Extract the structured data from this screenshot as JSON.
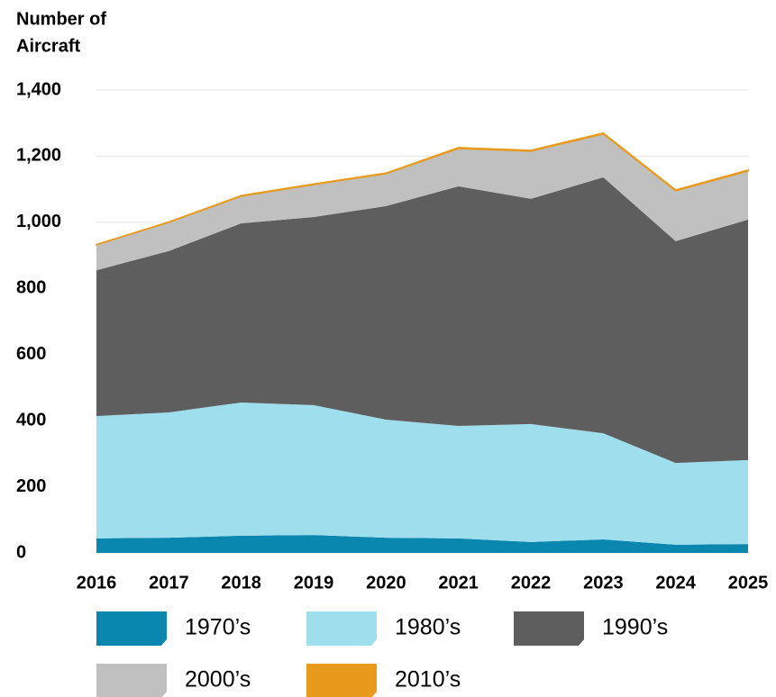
{
  "chart_data": {
    "type": "stacked_area",
    "y_axis_label": [
      "Number of",
      "Aircraft"
    ],
    "x": [
      2016,
      2017,
      2018,
      2019,
      2020,
      2021,
      2022,
      2023,
      2024,
      2025
    ],
    "xlim": [
      2016,
      2025
    ],
    "xticks": [
      2016,
      2017,
      2018,
      2019,
      2020,
      2021,
      2022,
      2023,
      2024,
      2025
    ],
    "ylim": [
      0,
      1400
    ],
    "yticks": [
      0,
      200,
      400,
      600,
      800,
      {
        "value": 1000,
        "label": "1,000"
      },
      {
        "value": 1200,
        "label": "1,200"
      },
      {
        "value": 1400,
        "label": "1,400"
      }
    ],
    "grid": true,
    "legend": "bottom",
    "series": [
      {
        "name": "1970’s",
        "color": "#0a87ae",
        "values": [
          44,
          46,
          52,
          54,
          46,
          44,
          33,
          41,
          25,
          27
        ]
      },
      {
        "name": "1980’s",
        "color": "#9edeed",
        "values": [
          370,
          379,
          403,
          393,
          357,
          340,
          357,
          321,
          247,
          254
        ]
      },
      {
        "name": "1990’s",
        "color": "#5e5e5e",
        "values": [
          441,
          488,
          542,
          569,
          646,
          725,
          681,
          774,
          671,
          727
        ]
      },
      {
        "name": "2000’s",
        "color": "#c0c0c0",
        "values": [
          77,
          87,
          82,
          98,
          98,
          114,
          144,
          131,
          152,
          147
        ]
      },
      {
        "name": "2010’s",
        "color": "#e89a1c",
        "values": [
          1,
          1,
          2,
          2,
          2,
          3,
          3,
          3,
          3,
          3
        ]
      }
    ]
  }
}
